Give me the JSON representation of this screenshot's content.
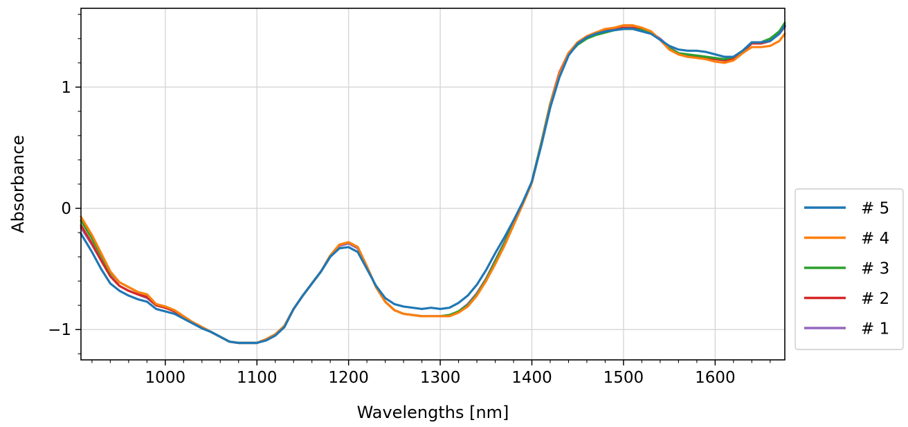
{
  "chart_data": {
    "type": "line",
    "title": "",
    "xlabel": "Wavelengths [nm]",
    "ylabel": "Absorbance",
    "xlim": [
      908,
      1676
    ],
    "ylim": [
      -1.25,
      1.65
    ],
    "xticks": [
      1000,
      1100,
      1200,
      1300,
      1400,
      1500,
      1600
    ],
    "xtick_labels": [
      "1000",
      "1100",
      "1200",
      "1300",
      "1400",
      "1500",
      "1600"
    ],
    "yticks": [
      -1,
      0,
      1
    ],
    "ytick_labels": [
      "−1",
      "0",
      "1"
    ],
    "grid": true,
    "legend_position": "lower-right outside",
    "legend_order": [
      "# 5",
      "# 4",
      "# 3",
      "# 2",
      "# 1"
    ],
    "x": [
      908,
      920,
      930,
      940,
      950,
      960,
      970,
      980,
      990,
      1000,
      1010,
      1020,
      1030,
      1040,
      1050,
      1060,
      1070,
      1080,
      1090,
      1100,
      1110,
      1120,
      1130,
      1140,
      1150,
      1160,
      1170,
      1180,
      1190,
      1200,
      1210,
      1220,
      1230,
      1240,
      1250,
      1260,
      1270,
      1280,
      1290,
      1300,
      1310,
      1320,
      1330,
      1340,
      1350,
      1360,
      1370,
      1380,
      1390,
      1400,
      1410,
      1420,
      1430,
      1440,
      1450,
      1460,
      1470,
      1480,
      1490,
      1500,
      1510,
      1520,
      1530,
      1540,
      1550,
      1560,
      1570,
      1580,
      1590,
      1600,
      1610,
      1620,
      1630,
      1640,
      1650,
      1660,
      1670,
      1676
    ],
    "series": [
      {
        "name": "# 1",
        "color": "#9467bd",
        "values": [
          -0.16,
          -0.3,
          -0.43,
          -0.56,
          -0.64,
          -0.68,
          -0.71,
          -0.74,
          -0.8,
          -0.82,
          -0.85,
          -0.9,
          -0.94,
          -0.98,
          -1.02,
          -1.06,
          -1.1,
          -1.11,
          -1.11,
          -1.11,
          -1.08,
          -1.04,
          -0.97,
          -0.83,
          -0.72,
          -0.62,
          -0.52,
          -0.4,
          -0.31,
          -0.29,
          -0.33,
          -0.48,
          -0.65,
          -0.77,
          -0.84,
          -0.87,
          -0.88,
          -0.89,
          -0.89,
          -0.89,
          -0.88,
          -0.85,
          -0.79,
          -0.7,
          -0.58,
          -0.43,
          -0.28,
          -0.12,
          0.04,
          0.22,
          0.53,
          0.86,
          1.12,
          1.28,
          1.36,
          1.41,
          1.44,
          1.46,
          1.47,
          1.48,
          1.49,
          1.48,
          1.45,
          1.4,
          1.33,
          1.28,
          1.26,
          1.26,
          1.25,
          1.24,
          1.23,
          1.24,
          1.3,
          1.36,
          1.36,
          1.38,
          1.44,
          1.5
        ]
      },
      {
        "name": "# 2",
        "color": "#d62728",
        "values": [
          -0.14,
          -0.29,
          -0.43,
          -0.56,
          -0.64,
          -0.68,
          -0.71,
          -0.73,
          -0.8,
          -0.82,
          -0.85,
          -0.9,
          -0.94,
          -0.98,
          -1.02,
          -1.06,
          -1.1,
          -1.11,
          -1.11,
          -1.11,
          -1.08,
          -1.04,
          -0.97,
          -0.83,
          -0.72,
          -0.62,
          -0.52,
          -0.39,
          -0.3,
          -0.28,
          -0.32,
          -0.48,
          -0.65,
          -0.77,
          -0.84,
          -0.87,
          -0.88,
          -0.89,
          -0.89,
          -0.89,
          -0.89,
          -0.86,
          -0.8,
          -0.71,
          -0.59,
          -0.44,
          -0.29,
          -0.13,
          0.04,
          0.22,
          0.53,
          0.86,
          1.12,
          1.28,
          1.37,
          1.42,
          1.45,
          1.47,
          1.48,
          1.49,
          1.49,
          1.48,
          1.45,
          1.39,
          1.31,
          1.27,
          1.25,
          1.25,
          1.24,
          1.23,
          1.22,
          1.23,
          1.29,
          1.36,
          1.36,
          1.38,
          1.44,
          1.5
        ]
      },
      {
        "name": "# 3",
        "color": "#2ca02c",
        "values": [
          -0.1,
          -0.25,
          -0.39,
          -0.53,
          -0.61,
          -0.65,
          -0.69,
          -0.71,
          -0.79,
          -0.81,
          -0.84,
          -0.89,
          -0.94,
          -0.98,
          -1.02,
          -1.06,
          -1.1,
          -1.11,
          -1.11,
          -1.11,
          -1.08,
          -1.04,
          -0.97,
          -0.83,
          -0.72,
          -0.62,
          -0.52,
          -0.39,
          -0.3,
          -0.28,
          -0.32,
          -0.48,
          -0.65,
          -0.77,
          -0.84,
          -0.87,
          -0.88,
          -0.89,
          -0.89,
          -0.89,
          -0.88,
          -0.85,
          -0.8,
          -0.71,
          -0.59,
          -0.44,
          -0.29,
          -0.13,
          0.04,
          0.22,
          0.53,
          0.86,
          1.1,
          1.27,
          1.35,
          1.4,
          1.43,
          1.45,
          1.47,
          1.48,
          1.48,
          1.47,
          1.45,
          1.39,
          1.32,
          1.28,
          1.27,
          1.26,
          1.25,
          1.24,
          1.23,
          1.25,
          1.3,
          1.37,
          1.37,
          1.4,
          1.46,
          1.53
        ]
      },
      {
        "name": "# 4",
        "color": "#ff7f0e",
        "values": [
          -0.07,
          -0.22,
          -0.37,
          -0.52,
          -0.61,
          -0.65,
          -0.69,
          -0.71,
          -0.79,
          -0.81,
          -0.84,
          -0.89,
          -0.94,
          -0.98,
          -1.02,
          -1.06,
          -1.1,
          -1.11,
          -1.11,
          -1.11,
          -1.08,
          -1.04,
          -0.97,
          -0.83,
          -0.72,
          -0.62,
          -0.52,
          -0.39,
          -0.3,
          -0.28,
          -0.32,
          -0.48,
          -0.65,
          -0.77,
          -0.84,
          -0.87,
          -0.88,
          -0.89,
          -0.89,
          -0.89,
          -0.89,
          -0.86,
          -0.81,
          -0.72,
          -0.6,
          -0.46,
          -0.31,
          -0.14,
          0.03,
          0.21,
          0.52,
          0.85,
          1.11,
          1.28,
          1.37,
          1.42,
          1.45,
          1.48,
          1.49,
          1.51,
          1.51,
          1.49,
          1.46,
          1.39,
          1.31,
          1.27,
          1.25,
          1.24,
          1.23,
          1.21,
          1.2,
          1.22,
          1.28,
          1.33,
          1.33,
          1.34,
          1.38,
          1.44
        ]
      },
      {
        "name": "# 5",
        "color": "#1f77b4",
        "values": [
          -0.21,
          -0.36,
          -0.5,
          -0.62,
          -0.68,
          -0.72,
          -0.75,
          -0.77,
          -0.83,
          -0.85,
          -0.87,
          -0.91,
          -0.95,
          -0.99,
          -1.02,
          -1.06,
          -1.1,
          -1.11,
          -1.11,
          -1.11,
          -1.09,
          -1.05,
          -0.98,
          -0.83,
          -0.72,
          -0.62,
          -0.52,
          -0.4,
          -0.33,
          -0.32,
          -0.36,
          -0.5,
          -0.64,
          -0.74,
          -0.79,
          -0.81,
          -0.82,
          -0.83,
          -0.82,
          -0.83,
          -0.82,
          -0.78,
          -0.72,
          -0.63,
          -0.51,
          -0.37,
          -0.24,
          -0.1,
          0.05,
          0.22,
          0.51,
          0.83,
          1.08,
          1.26,
          1.36,
          1.41,
          1.44,
          1.46,
          1.47,
          1.48,
          1.48,
          1.46,
          1.44,
          1.39,
          1.34,
          1.31,
          1.3,
          1.3,
          1.29,
          1.27,
          1.25,
          1.25,
          1.3,
          1.37,
          1.37,
          1.38,
          1.44,
          1.51
        ]
      }
    ]
  }
}
